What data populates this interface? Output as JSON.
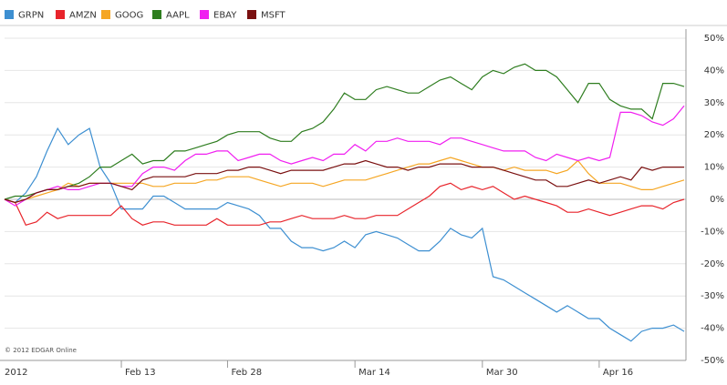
{
  "chart_data": {
    "type": "line",
    "source": "© 2012 EDGAR Online",
    "categories": [
      "2012",
      null,
      null,
      null,
      null,
      null,
      null,
      null,
      null,
      null,
      null,
      "Feb 13",
      null,
      null,
      null,
      null,
      null,
      null,
      null,
      null,
      null,
      "Feb 28",
      null,
      null,
      null,
      null,
      null,
      null,
      null,
      null,
      null,
      null,
      null,
      "Mar 14",
      null,
      null,
      null,
      null,
      null,
      null,
      null,
      null,
      null,
      null,
      null,
      "Mar 30",
      null,
      null,
      null,
      null,
      null,
      null,
      null,
      null,
      null,
      null,
      "Apr 16",
      null,
      null,
      null,
      null,
      null,
      null,
      null,
      null
    ],
    "series": [
      {
        "name": "GRPN",
        "color": "#3d8fd1",
        "values": [
          0,
          -1,
          2,
          7,
          15,
          22,
          17,
          20,
          22,
          10,
          5,
          -3,
          -3,
          -3,
          1,
          1,
          -1,
          -3,
          -3,
          -3,
          -3,
          -1,
          -2,
          -3,
          -5,
          -9,
          -9,
          -13,
          -15,
          -15,
          -16,
          -15,
          -13,
          -15,
          -11,
          -10,
          -11,
          -12,
          -14,
          -16,
          -16,
          -13,
          -9,
          -11,
          -12,
          -9,
          -24,
          -25,
          -27,
          -29,
          -31,
          -33,
          -35,
          -33,
          -35,
          -37,
          -37,
          -40,
          -42,
          -44,
          -41,
          -40,
          -40,
          -39,
          -41
        ]
      },
      {
        "name": "AMZN",
        "color": "#e8242b",
        "values": [
          0,
          -1,
          -8,
          -7,
          -4,
          -6,
          -5,
          -5,
          -5,
          -5,
          -5,
          -2,
          -6,
          -8,
          -7,
          -7,
          -8,
          -8,
          -8,
          -8,
          -6,
          -8,
          -8,
          -8,
          -8,
          -7,
          -7,
          -6,
          -5,
          -6,
          -6,
          -6,
          -5,
          -6,
          -6,
          -5,
          -5,
          -5,
          -3,
          -1,
          1,
          4,
          5,
          3,
          4,
          3,
          4,
          2,
          0,
          1,
          0,
          -1,
          -2,
          -4,
          -4,
          -3,
          -4,
          -5,
          -4,
          -3,
          -2,
          -2,
          -3,
          -1,
          0
        ]
      },
      {
        "name": "GOOG",
        "color": "#f5a623",
        "values": [
          0,
          -1,
          0,
          1,
          2,
          3,
          5,
          4,
          5,
          5,
          5,
          5,
          5,
          5,
          4,
          4,
          5,
          5,
          5,
          6,
          6,
          7,
          7,
          7,
          6,
          5,
          4,
          5,
          5,
          5,
          4,
          5,
          6,
          6,
          6,
          7,
          8,
          9,
          10,
          11,
          11,
          12,
          13,
          12,
          11,
          10,
          10,
          9,
          10,
          9,
          9,
          9,
          8,
          9,
          12,
          8,
          5,
          5,
          5,
          4,
          3,
          3,
          4,
          5,
          6
        ]
      },
      {
        "name": "AAPL",
        "color": "#2e7d1f",
        "values": [
          0,
          1,
          1,
          2,
          3,
          3,
          4,
          5,
          7,
          10,
          10,
          12,
          14,
          11,
          12,
          12,
          15,
          15,
          16,
          17,
          18,
          20,
          21,
          21,
          21,
          19,
          18,
          18,
          21,
          22,
          24,
          28,
          33,
          31,
          31,
          34,
          35,
          34,
          33,
          33,
          35,
          37,
          38,
          36,
          34,
          38,
          40,
          39,
          41,
          42,
          40,
          40,
          38,
          34,
          30,
          36,
          36,
          31,
          29,
          28,
          28,
          25,
          36,
          36,
          35
        ]
      },
      {
        "name": "EBAY",
        "color": "#f01ff0",
        "values": [
          0,
          -2,
          0,
          2,
          3,
          4,
          3,
          3,
          4,
          5,
          5,
          4,
          4,
          8,
          10,
          10,
          9,
          12,
          14,
          14,
          15,
          15,
          12,
          13,
          14,
          14,
          12,
          11,
          12,
          13,
          12,
          14,
          14,
          17,
          15,
          18,
          18,
          19,
          18,
          18,
          18,
          17,
          19,
          19,
          18,
          17,
          16,
          15,
          15,
          15,
          13,
          12,
          14,
          13,
          12,
          13,
          12,
          13,
          27,
          27,
          26,
          24,
          23,
          25,
          29
        ]
      },
      {
        "name": "MSFT",
        "color": "#7a1010",
        "values": [
          0,
          -1,
          0,
          2,
          3,
          3,
          4,
          4,
          5,
          5,
          5,
          4,
          3,
          6,
          7,
          7,
          7,
          7,
          8,
          8,
          8,
          9,
          9,
          10,
          10,
          9,
          8,
          9,
          9,
          9,
          9,
          10,
          11,
          11,
          12,
          11,
          10,
          10,
          9,
          10,
          10,
          11,
          11,
          11,
          10,
          10,
          10,
          9,
          8,
          7,
          6,
          6,
          4,
          4,
          5,
          6,
          5,
          6,
          7,
          6,
          10,
          9,
          10,
          10,
          10
        ]
      }
    ],
    "ylim": [
      -50,
      50
    ],
    "yticks": [
      {
        "value": 50,
        "label": "50%"
      },
      {
        "value": 40,
        "label": "40%"
      },
      {
        "value": 30,
        "label": "30%"
      },
      {
        "value": 20,
        "label": "20%"
      },
      {
        "value": 10,
        "label": "10%"
      },
      {
        "value": 0,
        "label": "0%"
      },
      {
        "value": -10,
        "label": "-10%"
      },
      {
        "value": -20,
        "label": "-20%"
      },
      {
        "value": -30,
        "label": "-30%"
      },
      {
        "value": -40,
        "label": "-40%"
      },
      {
        "value": -50,
        "label": "-50%"
      }
    ],
    "grid": true
  }
}
